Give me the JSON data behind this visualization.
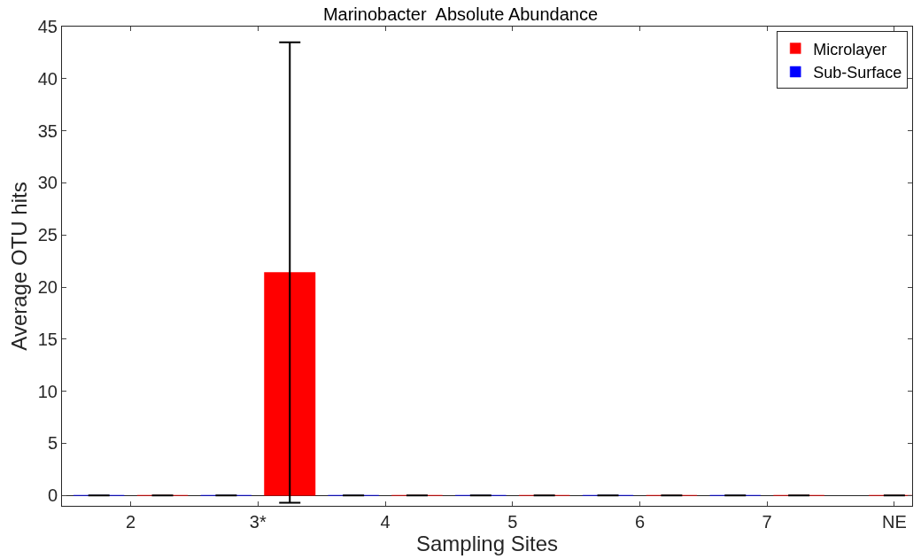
{
  "chart_data": {
    "type": "bar",
    "title": "Marinobacter  Absolute Abundance",
    "xlabel": "Sampling Sites",
    "ylabel": "Average OTU hits",
    "categories": [
      "2",
      "3*",
      "4",
      "5",
      "6",
      "7",
      "NE"
    ],
    "series": [
      {
        "name": "Sub-Surface",
        "color": "#0000ff",
        "values": [
          0,
          0,
          0,
          0,
          0,
          0,
          null
        ],
        "errors": [
          0,
          0,
          0,
          0,
          0,
          0,
          null
        ]
      },
      {
        "name": "Microlayer",
        "color": "#ff0000",
        "values": [
          0,
          21.4,
          0,
          0,
          0,
          0,
          0
        ],
        "errors": [
          0,
          22.1,
          0,
          0,
          0,
          0,
          0
        ]
      }
    ],
    "ylim": [
      -1,
      45
    ],
    "yticks": [
      0,
      5,
      10,
      15,
      20,
      25,
      30,
      35,
      40,
      45
    ],
    "legend": "top right"
  }
}
